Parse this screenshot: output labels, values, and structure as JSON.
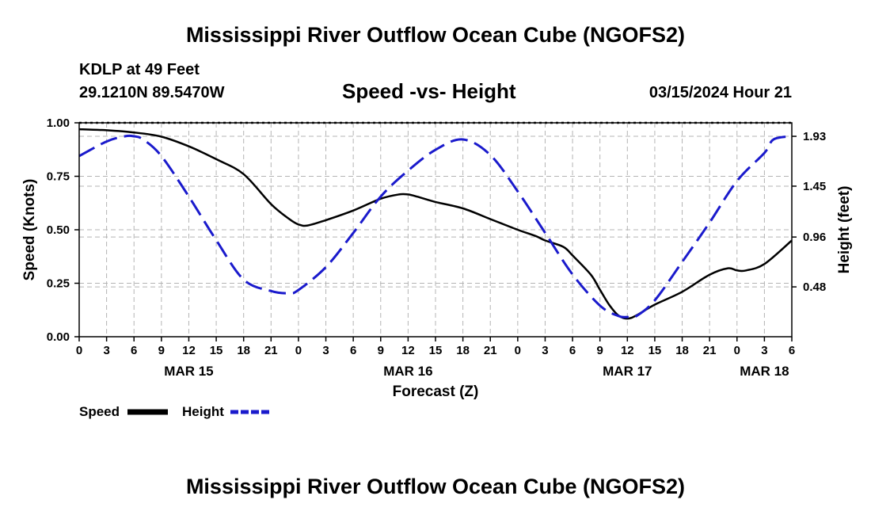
{
  "page": {
    "title_top": "Mississippi River Outflow Ocean Cube (NGOFS2)",
    "title_bottom": "Mississippi River Outflow Ocean Cube (NGOFS2)",
    "station_line": "KDLP at 49 Feet",
    "coords_line": "29.1210N  89.5470W",
    "subtitle": "Speed -vs- Height",
    "date_line": "03/15/2024 Hour 21"
  },
  "colors": {
    "speed": "#000000",
    "height": "#1a1acc",
    "grid": "#b4b4b4"
  },
  "chart_data": {
    "type": "line",
    "title": "Speed -vs- Height",
    "xlabel": "Forecast (Z)",
    "ylabel": "Speed (Knots)",
    "y2label": "Height (feet)",
    "xlim": [
      0,
      78
    ],
    "ylim": [
      0,
      1.0
    ],
    "y2lim": [
      0.0,
      2.06
    ],
    "x_ticks": [
      0,
      3,
      6,
      9,
      12,
      15,
      18,
      21,
      24,
      27,
      30,
      33,
      36,
      39,
      42,
      45,
      48,
      51,
      54,
      57,
      60,
      63,
      66,
      69,
      72,
      75,
      78
    ],
    "x_tick_labels": [
      "0",
      "3",
      "6",
      "9",
      "12",
      "15",
      "18",
      "21",
      "0",
      "3",
      "6",
      "9",
      "12",
      "15",
      "18",
      "21",
      "0",
      "3",
      "6",
      "9",
      "12",
      "15",
      "18",
      "21",
      "0",
      "3",
      "6"
    ],
    "y_ticks": [
      0.0,
      0.25,
      0.5,
      0.75,
      1.0
    ],
    "y_tick_labels": [
      "0.00",
      "0.25",
      "0.50",
      "0.75",
      "1.00"
    ],
    "y2_ticks": [
      0.48,
      0.96,
      1.45,
      1.93
    ],
    "y2_tick_labels": [
      "0.48",
      "0.96",
      "1.45",
      "1.93"
    ],
    "day_labels": [
      {
        "x": 12,
        "label": "MAR 15"
      },
      {
        "x": 36,
        "label": "MAR 16"
      },
      {
        "x": 60,
        "label": "MAR 17"
      },
      {
        "x": 75,
        "label": "MAR 18"
      }
    ],
    "grid": true,
    "legend": {
      "placement": "bottom-left",
      "entries": [
        "Speed",
        "Height"
      ]
    },
    "series": [
      {
        "name": "Speed",
        "axis": "left",
        "style": "solid",
        "x": [
          0,
          3,
          6,
          9,
          12,
          15,
          18,
          21,
          23,
          24,
          25,
          27,
          30,
          33,
          35,
          36,
          37,
          39,
          42,
          45,
          48,
          50,
          51,
          53,
          54,
          56,
          57,
          58,
          59,
          60,
          61,
          63,
          66,
          69,
          71,
          72,
          73,
          75,
          78
        ],
        "values": [
          0.97,
          0.965,
          0.955,
          0.935,
          0.89,
          0.83,
          0.76,
          0.62,
          0.55,
          0.525,
          0.52,
          0.545,
          0.59,
          0.645,
          0.665,
          0.665,
          0.655,
          0.63,
          0.6,
          0.55,
          0.5,
          0.47,
          0.45,
          0.42,
          0.38,
          0.29,
          0.22,
          0.15,
          0.1,
          0.085,
          0.1,
          0.15,
          0.21,
          0.29,
          0.32,
          0.31,
          0.31,
          0.34,
          0.45
        ]
      },
      {
        "name": "Height",
        "axis": "right",
        "style": "dashed",
        "x": [
          0,
          3,
          5,
          6,
          7,
          9,
          12,
          15,
          18,
          21,
          23,
          24,
          27,
          30,
          33,
          36,
          39,
          42,
          45,
          48,
          51,
          54,
          57,
          59,
          60,
          61,
          63,
          66,
          69,
          72,
          75,
          76,
          78
        ],
        "values": [
          1.74,
          1.88,
          1.93,
          1.93,
          1.9,
          1.74,
          1.35,
          0.93,
          0.55,
          0.44,
          0.42,
          0.45,
          0.67,
          1.0,
          1.35,
          1.6,
          1.8,
          1.9,
          1.75,
          1.4,
          1.0,
          0.6,
          0.3,
          0.2,
          0.19,
          0.2,
          0.35,
          0.72,
          1.1,
          1.5,
          1.77,
          1.9,
          1.93
        ]
      }
    ]
  }
}
